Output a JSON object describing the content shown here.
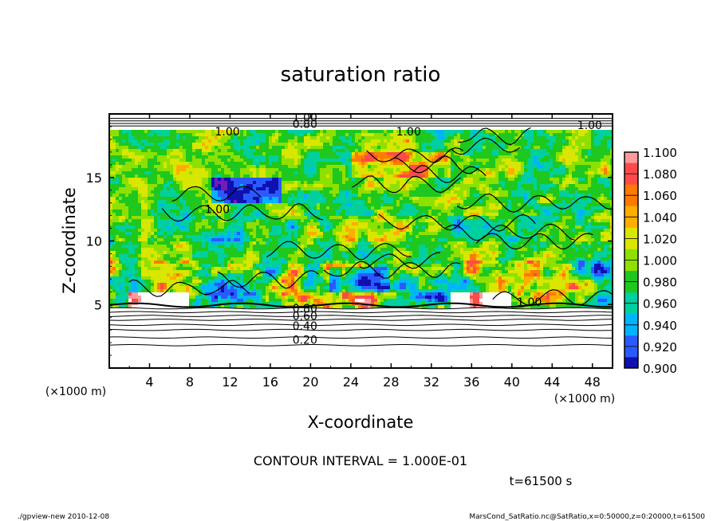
{
  "chart_data": {
    "type": "heatmap",
    "title": "saturation ratio",
    "xlabel": "X-coordinate",
    "ylabel": "Z-coordinate",
    "x_unit": "(×1000 m)",
    "z_unit": "(×1000 m)",
    "xlim": [
      0,
      50
    ],
    "ylim": [
      0,
      20
    ],
    "x_ticks": [
      "4",
      "8",
      "12",
      "16",
      "20",
      "24",
      "28",
      "32",
      "36",
      "40",
      "44",
      "48"
    ],
    "y_ticks": [
      "5",
      "10",
      "15"
    ],
    "contour_interval_text": "CONTOUR INTERVAL = 1.000E-01",
    "time_text": "t=61500 s",
    "contour_labels": [
      "0.20",
      "0.40",
      "0.60",
      "0.80",
      "1.00",
      "0.80",
      "1.00",
      "1.00",
      "1.00",
      "1.00",
      "1.00"
    ],
    "colorbar": {
      "labels": [
        "1.100",
        "1.080",
        "1.060",
        "1.040",
        "1.020",
        "1.000",
        "0.980",
        "0.960",
        "0.940",
        "0.920",
        "0.900"
      ],
      "colors": [
        "#ff9a9a",
        "#ff4a4a",
        "#ff7a00",
        "#ffae00",
        "#d8e600",
        "#8ee000",
        "#1ec81e",
        "#00d0a0",
        "#00b4ff",
        "#2a5aff",
        "#1010b0",
        "#7a18b8"
      ]
    },
    "field": {
      "description_levels_low": [
        0.2,
        0.4,
        0.6,
        0.8
      ],
      "cloud_base_km": 5,
      "model_top_km": 19
    }
  },
  "footer": {
    "left": "./gpview-new  2010-12-08",
    "right": "MarsCond_SatRatio.nc@SatRatio,x=0:50000,z=0:20000,t=61500"
  }
}
